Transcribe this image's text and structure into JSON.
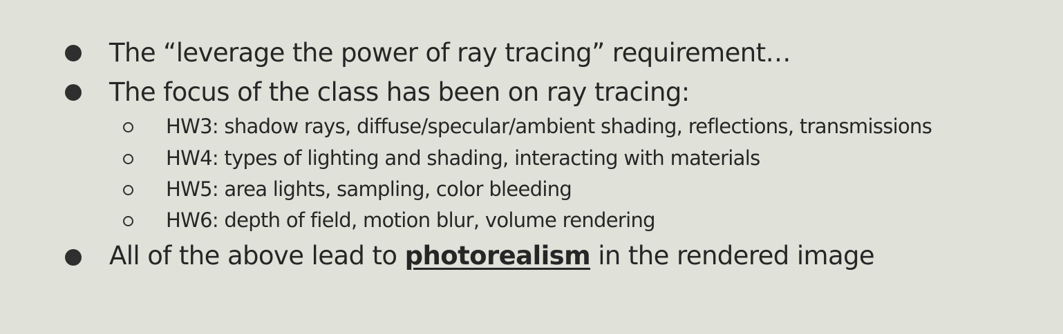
{
  "slide": {
    "bullets": [
      {
        "text": "The “leverage the power of ray tracing” requirement…"
      },
      {
        "text": "The focus of the class has been on ray tracing:",
        "subitems": [
          "HW3: shadow rays, diffuse/specular/ambient shading, reflections, transmissions",
          "HW4: types of lighting and shading, interacting with materials",
          "HW5: area lights, sampling, color bleeding",
          "HW6: depth of field, motion blur, volume rendering"
        ]
      },
      {
        "text_before": "All of the above lead to ",
        "emphasis": "photorealism",
        "text_after": " in the rendered image"
      }
    ]
  },
  "colors": {
    "background": "#e0e1d9",
    "text": "#262626",
    "bullet": "#2f2f2f"
  }
}
